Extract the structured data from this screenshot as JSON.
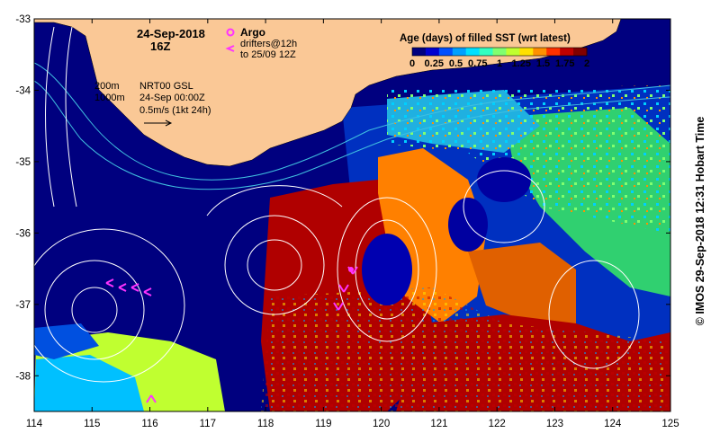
{
  "header": {
    "date": "24-Sep-2018",
    "time": "16Z"
  },
  "legend_argo": {
    "argo_label": "Argo",
    "drifters_label": "drifters@12h",
    "drifters_until": "to 25/09 12Z",
    "argo_color": "#ff33ff",
    "drifter_color": "#ff33ff"
  },
  "colorbar": {
    "title": "Age (days) of filled SST (wrt latest)",
    "tick_labels": [
      "0",
      "0.25",
      "0.5",
      "0.75",
      "1",
      "1.25",
      "1.5",
      "1.75",
      "2"
    ],
    "colors": [
      "#00007f",
      "#0000d0",
      "#0050ff",
      "#00a0ff",
      "#00e0ff",
      "#30ffc0",
      "#80ff70",
      "#c0ff30",
      "#ffe000",
      "#ff9000",
      "#ff3000",
      "#c00000",
      "#800000"
    ]
  },
  "map_annotations": {
    "depth_contour_1": "200m",
    "depth_contour_2": "1000m",
    "product": "NRT00 GSL",
    "product_time": "24-Sep 00:00Z",
    "velocity_scale": "0.5m/s (1kt 24h)"
  },
  "axes": {
    "lon_ticks": [
      "114",
      "115",
      "116",
      "117",
      "118",
      "119",
      "120",
      "121",
      "122",
      "123",
      "124",
      "125"
    ],
    "lat_ticks": [
      "-33",
      "-34",
      "-35",
      "-36",
      "-37",
      "-38"
    ],
    "lon_range": [
      114,
      125
    ],
    "lat_range": [
      -38.5,
      -33
    ]
  },
  "colors": {
    "land": "#fac896",
    "deep_ocean": "#00007f",
    "bathymetry_line": "#40c0e0",
    "ssh_contour": "#ffffff"
  },
  "credit": "© IMOS 29-Sep-2018 12:31 Hobart Time"
}
